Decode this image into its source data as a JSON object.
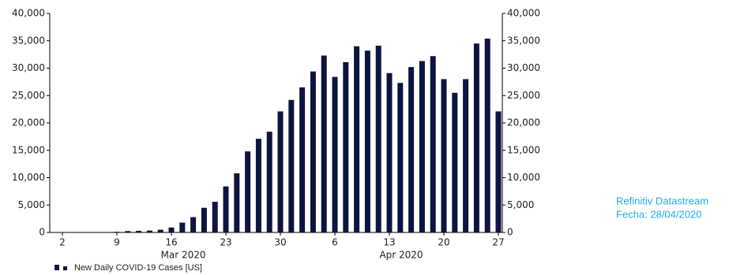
{
  "chart_data": {
    "type": "bar",
    "categories": [
      "2",
      null,
      null,
      null,
      null,
      "9",
      null,
      null,
      null,
      null,
      "16",
      null,
      null,
      null,
      null,
      "23",
      null,
      null,
      null,
      null,
      "30",
      null,
      null,
      null,
      null,
      "6",
      null,
      null,
      null,
      null,
      "13",
      null,
      null,
      null,
      null,
      "20",
      null,
      null,
      null,
      null,
      "27"
    ],
    "x_groups": [
      "Mar 2020",
      "Apr 2020"
    ],
    "series": [
      {
        "name": "New Daily COVID-19 Cases [US]",
        "color": "#0c1540",
        "values": [
          20,
          30,
          30,
          40,
          60,
          120,
          250,
          300,
          350,
          500,
          900,
          1800,
          2800,
          4500,
          5600,
          8400,
          10800,
          14800,
          17100,
          18400,
          22100,
          24200,
          26500,
          29400,
          32300,
          28400,
          31100,
          34000,
          33200,
          34100,
          29100,
          27300,
          30200,
          31300,
          32200,
          28000,
          25500,
          28000,
          34500,
          35400,
          22100
        ]
      }
    ],
    "ylim": [
      0,
      40000
    ],
    "yticks": [
      0,
      {
        "value": 5000,
        "label": "5,000"
      },
      {
        "value": 10000,
        "label": "10,000"
      },
      {
        "value": 15000,
        "label": "15,000"
      },
      {
        "value": 20000,
        "label": "20,000"
      },
      {
        "value": 25000,
        "label": "25,000"
      },
      {
        "value": 30000,
        "label": "30,000"
      },
      {
        "value": 35000,
        "label": "35,000"
      },
      {
        "value": 40000,
        "label": "40,000"
      }
    ],
    "y2lim": [
      0,
      40000
    ],
    "y2ticks": [
      0,
      {
        "value": 5000,
        "label": "5,000"
      },
      {
        "value": 10000,
        "label": "10,000"
      },
      {
        "value": 15000,
        "label": "15,000"
      },
      {
        "value": 20000,
        "label": "20,000"
      },
      {
        "value": 25000,
        "label": "25,000"
      },
      {
        "value": 30000,
        "label": "30,000"
      },
      {
        "value": 35000,
        "label": "35,000"
      },
      {
        "value": 40000,
        "label": "40,000"
      }
    ],
    "source": [
      "Refinitiv Datastream",
      "Fecha: 28/04/2020"
    ],
    "grid": false
  }
}
